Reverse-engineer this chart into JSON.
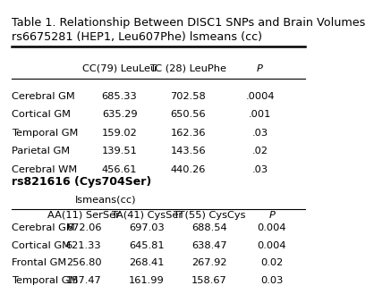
{
  "title_line1": "Table 1. Relationship Between DISC1 SNPs and Brain Volumes",
  "title_line2": "rs6675281 (HEP1, Leu607Phe) lsmeans (cc)",
  "table1_headers": [
    "",
    "CC(79) LeuLeu",
    "TC (28) LeuPhe",
    "P"
  ],
  "table1_rows": [
    [
      "Cerebral GM",
      "685.33",
      "702.58",
      ".0004"
    ],
    [
      "Cortical GM",
      "635.29",
      "650.56",
      ".001"
    ],
    [
      "Temporal GM",
      "159.02",
      "162.36",
      ".03"
    ],
    [
      "Parietal GM",
      "139.51",
      "143.56",
      ".02"
    ],
    [
      "Cerebral WM",
      "456.61",
      "440.26",
      ".03"
    ]
  ],
  "section2_label": "rs821616 (Cys704Ser)",
  "section2_sublabel": "lsmeans(cc)",
  "table2_headers": [
    "",
    "AA(11) SerSer",
    "TA(41) CysSer",
    "TT(55) CysCys",
    "P"
  ],
  "table2_rows": [
    [
      "Cerebral GM",
      "672.06",
      "697.03",
      "688.54",
      "0.004"
    ],
    [
      "Cortical GM",
      "621.33",
      "645.81",
      "638.47",
      "0.004"
    ],
    [
      "Frontal GM",
      "256.80",
      "268.41",
      "267.92",
      "0.02"
    ],
    [
      "Temporal GM",
      "157.47",
      "161.99",
      "158.67",
      "0.03"
    ]
  ],
  "bg_color": "#ffffff",
  "text_color": "#000000",
  "title_fontsize": 9.2,
  "header_fontsize": 8.2,
  "body_fontsize": 8.2,
  "section_fontsize": 9.0
}
